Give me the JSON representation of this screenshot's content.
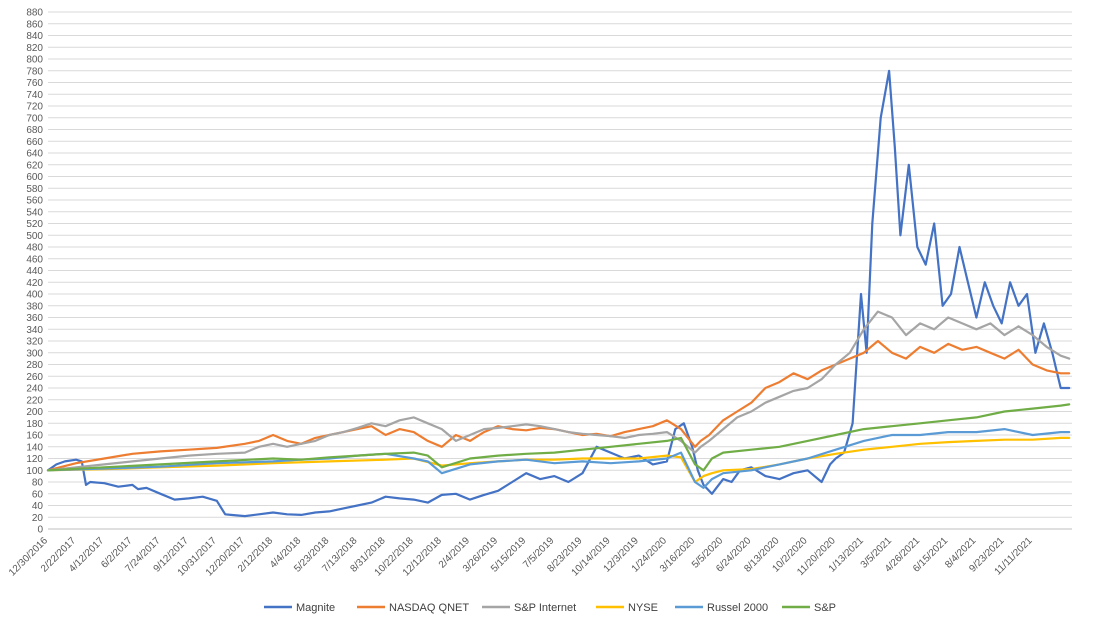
{
  "chart_data": {
    "type": "line",
    "title": "",
    "xlabel": "",
    "ylabel": "",
    "ylim": [
      0,
      880
    ],
    "ytick_step": 20,
    "grid": true,
    "legend_position": "bottom",
    "x_tick_labels": [
      "12/30/2016",
      "2/22/2017",
      "4/12/2017",
      "6/2/2017",
      "7/24/2017",
      "9/12/2017",
      "10/31/2017",
      "12/20/2017",
      "2/12/2018",
      "4/4/2018",
      "5/23/2018",
      "7/13/2018",
      "8/31/2018",
      "10/22/2018",
      "12/12/2018",
      "2/4/2019",
      "3/26/2019",
      "5/15/2019",
      "7/5/2019",
      "8/23/2019",
      "10/14/2019",
      "12/3/2019",
      "1/24/2020",
      "3/16/2020",
      "5/5/2020",
      "6/24/2020",
      "8/13/2020",
      "10/2/2020",
      "11/20/2020",
      "1/13/2021",
      "3/5/2021",
      "4/26/2021",
      "6/15/2021",
      "8/4/2021",
      "9/23/2021",
      "11/11/2021"
    ],
    "x_tick_positions": [
      0,
      1,
      2,
      3,
      4,
      5,
      6,
      7,
      8,
      9,
      10,
      11,
      12,
      13,
      14,
      15,
      16,
      17,
      18,
      19,
      20,
      21,
      22,
      23,
      24,
      25,
      26,
      27,
      28,
      29,
      30,
      31,
      32,
      33,
      34,
      35
    ],
    "x_range": [
      0,
      36.4
    ],
    "series": [
      {
        "name": "Magnite",
        "color": "#4472C4",
        "x": [
          0,
          0.3,
          0.6,
          1.0,
          1.2,
          1.35,
          1.5,
          2.0,
          2.5,
          3.0,
          3.2,
          3.5,
          4.0,
          4.5,
          5.0,
          5.5,
          6.0,
          6.3,
          6.5,
          7.0,
          7.5,
          8.0,
          8.5,
          9.0,
          9.5,
          10.0,
          10.5,
          11.0,
          11.5,
          12.0,
          12.5,
          13.0,
          13.5,
          14.0,
          14.5,
          15.0,
          15.5,
          16.0,
          16.5,
          17.0,
          17.5,
          18.0,
          18.5,
          19.0,
          19.5,
          20.0,
          20.5,
          21.0,
          21.5,
          22.0,
          22.3,
          22.6,
          22.9,
          23.1,
          23.3,
          23.6,
          24.0,
          24.3,
          24.6,
          25.0,
          25.5,
          26.0,
          26.5,
          27.0,
          27.5,
          27.8,
          28.0,
          28.3,
          28.6,
          28.9,
          29.1,
          29.3,
          29.6,
          29.9,
          30.1,
          30.3,
          30.6,
          30.9,
          31.2,
          31.5,
          31.8,
          32.1,
          32.4,
          32.7,
          33.0,
          33.3,
          33.6,
          33.9,
          34.2,
          34.5,
          34.8,
          35.1,
          35.4,
          35.7,
          36.0,
          36.3
        ],
        "y": [
          100,
          110,
          115,
          118,
          115,
          75,
          80,
          78,
          72,
          75,
          68,
          70,
          60,
          50,
          52,
          55,
          48,
          25,
          24,
          22,
          25,
          28,
          25,
          24,
          28,
          30,
          35,
          40,
          45,
          55,
          52,
          50,
          45,
          58,
          60,
          50,
          58,
          65,
          80,
          95,
          85,
          90,
          80,
          95,
          140,
          130,
          120,
          125,
          110,
          115,
          170,
          180,
          140,
          100,
          75,
          60,
          85,
          80,
          100,
          105,
          90,
          85,
          95,
          100,
          80,
          110,
          120,
          130,
          180,
          400,
          300,
          520,
          700,
          780,
          650,
          500,
          620,
          480,
          450,
          520,
          380,
          400,
          480,
          420,
          360,
          420,
          380,
          350,
          420,
          380,
          400,
          300,
          350,
          300,
          240,
          240
        ]
      },
      {
        "name": "NASDAQ QNET",
        "color": "#ED7D31",
        "x": [
          0,
          1,
          2,
          3,
          4,
          5,
          6,
          7,
          7.5,
          8,
          8.5,
          9,
          9.5,
          10,
          10.5,
          11,
          11.5,
          12,
          12.5,
          13,
          13.5,
          14,
          14.5,
          15,
          15.5,
          16,
          16.5,
          17,
          17.5,
          18,
          18.5,
          19,
          19.5,
          20,
          20.5,
          21,
          21.5,
          22,
          22.5,
          23,
          23.2,
          23.5,
          24,
          24.5,
          25,
          25.5,
          26,
          26.5,
          27,
          27.5,
          28,
          28.5,
          29,
          29.5,
          30,
          30.5,
          31,
          31.5,
          32,
          32.5,
          33,
          33.5,
          34,
          34.5,
          35,
          35.5,
          36,
          36.3
        ],
        "y": [
          100,
          112,
          120,
          128,
          132,
          135,
          138,
          145,
          150,
          160,
          150,
          145,
          155,
          160,
          165,
          170,
          175,
          160,
          170,
          165,
          150,
          140,
          160,
          150,
          165,
          175,
          170,
          168,
          172,
          170,
          165,
          160,
          162,
          158,
          165,
          170,
          175,
          185,
          170,
          140,
          150,
          160,
          185,
          200,
          215,
          240,
          250,
          265,
          255,
          270,
          280,
          290,
          300,
          320,
          300,
          290,
          310,
          300,
          315,
          305,
          310,
          300,
          290,
          305,
          280,
          270,
          265,
          265
        ]
      },
      {
        "name": "S&P Internet",
        "color": "#A5A5A5",
        "x": [
          0,
          1,
          2,
          3,
          4,
          5,
          6,
          7,
          7.5,
          8,
          8.5,
          9,
          9.5,
          10,
          10.5,
          11,
          11.5,
          12,
          12.5,
          13,
          13.5,
          14,
          14.5,
          15,
          15.5,
          16,
          16.5,
          17,
          17.5,
          18,
          18.5,
          19,
          19.5,
          20,
          20.5,
          21,
          21.5,
          22,
          22.5,
          23,
          23.2,
          23.5,
          24,
          24.5,
          25,
          25.5,
          26,
          26.5,
          27,
          27.5,
          28,
          28.5,
          29,
          29.5,
          30,
          30.5,
          31,
          31.5,
          32,
          32.5,
          33,
          33.5,
          34,
          34.5,
          35,
          35.5,
          36,
          36.3
        ],
        "y": [
          100,
          105,
          110,
          115,
          120,
          125,
          128,
          130,
          140,
          145,
          140,
          145,
          150,
          160,
          165,
          172,
          180,
          175,
          185,
          190,
          180,
          170,
          150,
          160,
          170,
          172,
          175,
          178,
          175,
          170,
          165,
          162,
          160,
          158,
          155,
          160,
          162,
          165,
          150,
          130,
          140,
          150,
          170,
          190,
          200,
          215,
          225,
          235,
          240,
          255,
          280,
          300,
          340,
          370,
          360,
          330,
          350,
          340,
          360,
          350,
          340,
          350,
          330,
          345,
          330,
          310,
          295,
          290
        ]
      },
      {
        "name": "NYSE",
        "color": "#FFC000",
        "x": [
          0,
          2,
          4,
          6,
          8,
          10,
          12,
          13,
          14,
          15,
          16,
          17,
          18,
          19,
          20,
          21,
          22,
          22.5,
          23,
          23.3,
          23.6,
          24,
          25,
          26,
          27,
          28,
          29,
          30,
          31,
          32,
          33,
          34,
          35,
          36,
          36.3
        ],
        "y": [
          100,
          102,
          105,
          108,
          112,
          115,
          118,
          120,
          108,
          112,
          115,
          118,
          118,
          120,
          120,
          120,
          125,
          122,
          80,
          90,
          95,
          100,
          102,
          110,
          120,
          128,
          135,
          140,
          145,
          148,
          150,
          152,
          152,
          155,
          155
        ]
      },
      {
        "name": "Russel 2000",
        "color": "#5B9BD5",
        "x": [
          0,
          2,
          4,
          6,
          8,
          9,
          10,
          11,
          12,
          13,
          13.5,
          14,
          15,
          16,
          17,
          18,
          19,
          20,
          21,
          22,
          22.5,
          23,
          23.3,
          23.6,
          24,
          25,
          26,
          27,
          28,
          29,
          30,
          31,
          32,
          33,
          34,
          35,
          36,
          36.3
        ],
        "y": [
          100,
          103,
          106,
          112,
          115,
          118,
          120,
          125,
          128,
          120,
          115,
          95,
          110,
          115,
          118,
          112,
          115,
          112,
          115,
          120,
          130,
          80,
          70,
          85,
          95,
          100,
          110,
          120,
          135,
          150,
          160,
          160,
          165,
          165,
          170,
          160,
          165,
          165
        ]
      },
      {
        "name": "S&P",
        "color": "#70AD47",
        "x": [
          0,
          2,
          4,
          6,
          8,
          9,
          10,
          11,
          12,
          13,
          13.5,
          14,
          15,
          16,
          17,
          18,
          19,
          20,
          21,
          22,
          22.5,
          23,
          23.3,
          23.6,
          24,
          25,
          26,
          27,
          28,
          29,
          30,
          31,
          32,
          33,
          34,
          35,
          36,
          36.3
        ],
        "y": [
          100,
          105,
          110,
          115,
          120,
          118,
          122,
          125,
          128,
          130,
          125,
          105,
          120,
          125,
          128,
          130,
          135,
          140,
          145,
          150,
          155,
          110,
          100,
          120,
          130,
          135,
          140,
          150,
          160,
          170,
          175,
          180,
          185,
          190,
          200,
          205,
          210,
          212
        ]
      }
    ]
  }
}
